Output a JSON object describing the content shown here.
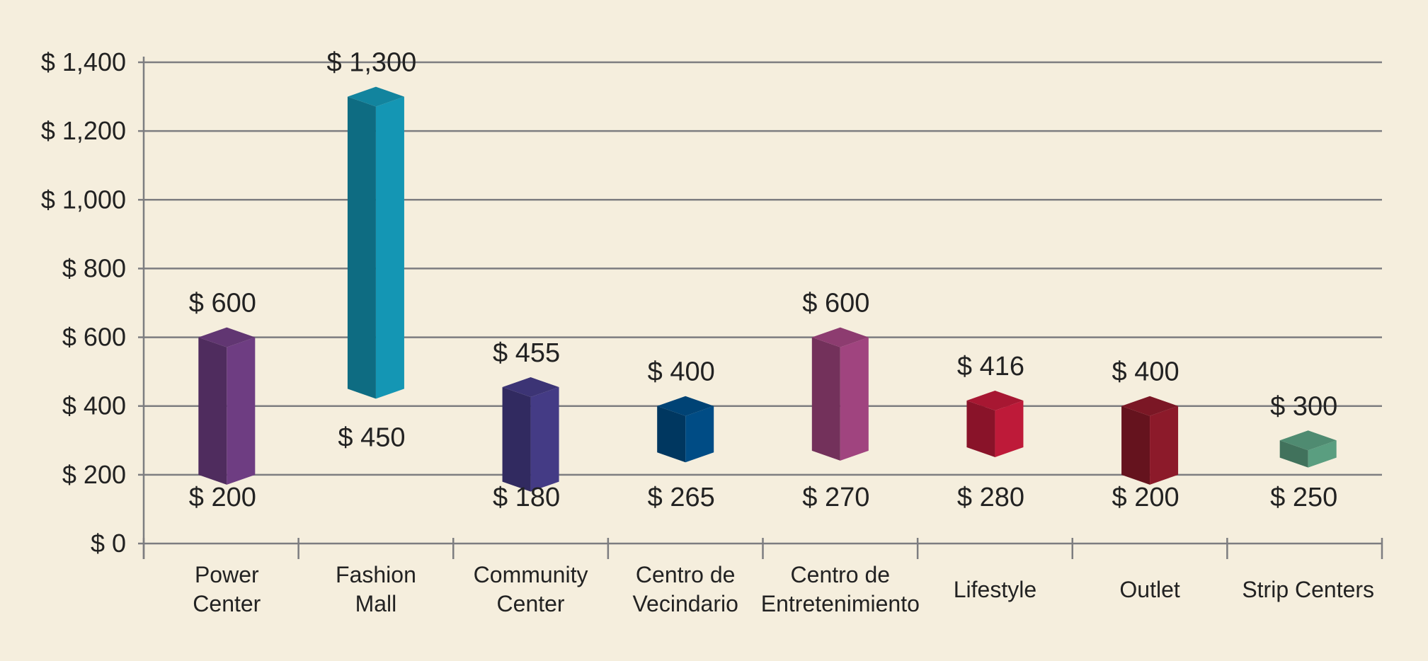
{
  "chart_data": {
    "type": "bar",
    "subtype": "floating-range-3d",
    "title": "",
    "xlabel": "",
    "ylabel": "",
    "ylim": [
      0,
      1400
    ],
    "yticks": [
      0,
      200,
      400,
      600,
      800,
      1000,
      1200,
      1400
    ],
    "ytick_labels": [
      "$ 0",
      "$ 200",
      "$ 400",
      "$ 600",
      "$ 800",
      "$ 1,000",
      "$ 1,200",
      "$ 1,400"
    ],
    "grid": true,
    "legend": "none",
    "categories": [
      {
        "label_lines": [
          "Power",
          "Center"
        ],
        "low": 200,
        "high": 600,
        "low_label": "$ 200",
        "high_label": "$ 600",
        "color": "#6e3d82"
      },
      {
        "label_lines": [
          "Fashion",
          "Mall"
        ],
        "low": 450,
        "high": 1300,
        "low_label": "$ 450",
        "high_label": "$ 1,300",
        "color": "#1496b4"
      },
      {
        "label_lines": [
          "Community",
          "Center"
        ],
        "low": 180,
        "high": 455,
        "low_label": "$ 180",
        "high_label": "$ 455",
        "color": "#443b85"
      },
      {
        "label_lines": [
          "Centro de",
          "Vecindario"
        ],
        "low": 265,
        "high": 400,
        "low_label": "$ 265",
        "high_label": "$ 400",
        "color": "#004c85"
      },
      {
        "label_lines": [
          "Centro de",
          "Entretenimiento"
        ],
        "low": 270,
        "high": 600,
        "low_label": "$ 270",
        "high_label": "$ 600",
        "color": "#a0447f"
      },
      {
        "label_lines": [
          "Lifestyle"
        ],
        "low": 280,
        "high": 416,
        "low_label": "$ 280",
        "high_label": "$ 416",
        "color": "#be1a39"
      },
      {
        "label_lines": [
          "Outlet"
        ],
        "low": 200,
        "high": 400,
        "low_label": "$ 200",
        "high_label": "$ 400",
        "color": "#8c1a2a"
      },
      {
        "label_lines": [
          "Strip Centers"
        ],
        "low": 250,
        "high": 300,
        "low_label": "$ 250",
        "high_label": "$ 300",
        "color": "#5a9e80"
      }
    ]
  }
}
